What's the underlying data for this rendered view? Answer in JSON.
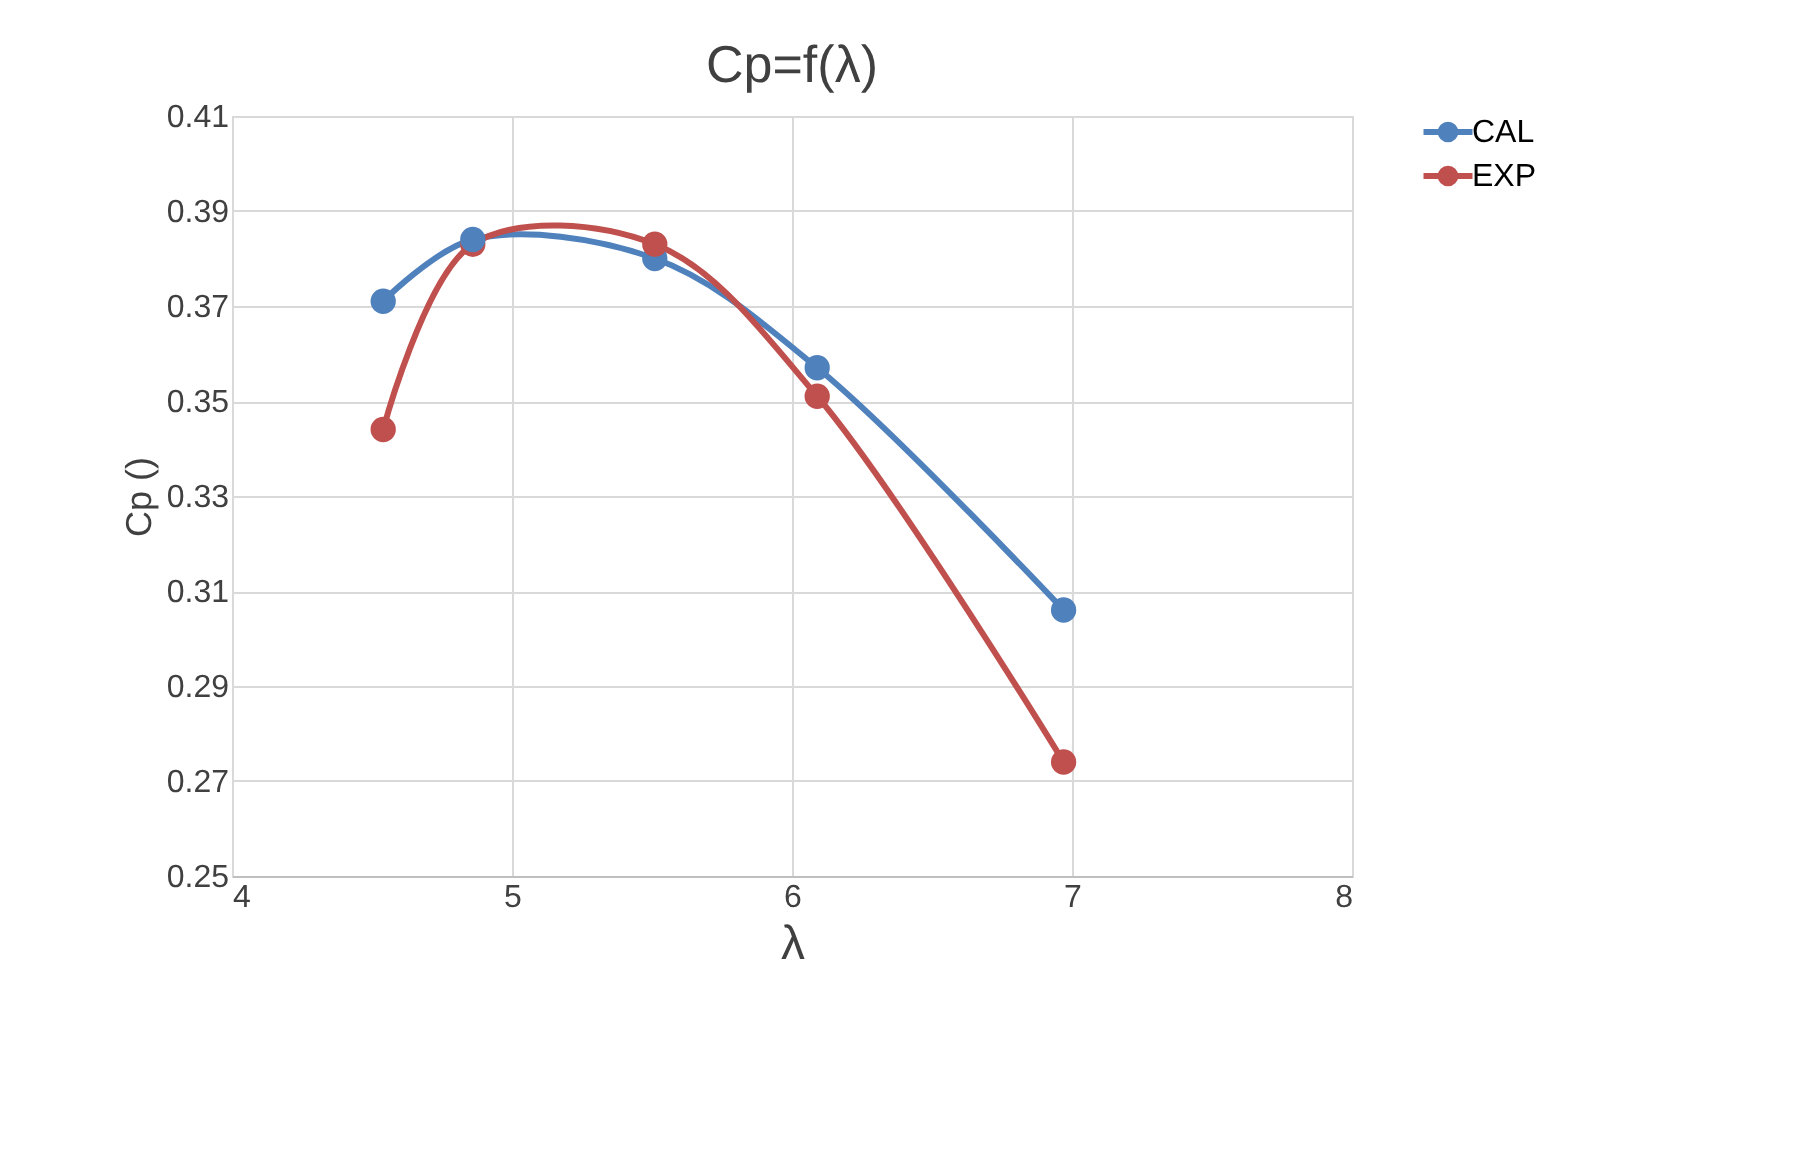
{
  "chart_data": {
    "type": "line",
    "title": "Cp=f(λ)",
    "xlabel": "λ",
    "ylabel": "Cp ()",
    "series": [
      {
        "name": "CAL",
        "color": "#4f81bd",
        "x": [
          4.54,
          4.86,
          5.51,
          6.09,
          6.97
        ],
        "values": [
          0.371,
          0.384,
          0.38,
          0.357,
          0.306
        ]
      },
      {
        "name": "EXP",
        "color": "#c0504d",
        "x": [
          4.54,
          4.86,
          5.51,
          6.09,
          6.97
        ],
        "values": [
          0.344,
          0.383,
          0.383,
          0.351,
          0.274
        ]
      }
    ],
    "xlim": [
      4,
      8
    ],
    "xticks": [
      4,
      5,
      6,
      7,
      8
    ],
    "ylim": [
      0.25,
      0.41
    ],
    "yticks": [
      0.25,
      0.27,
      0.29,
      0.31,
      0.33,
      0.35,
      0.37,
      0.39,
      0.41
    ],
    "grid": true,
    "legend": "right",
    "marker": "circle",
    "line_style": "solid"
  }
}
